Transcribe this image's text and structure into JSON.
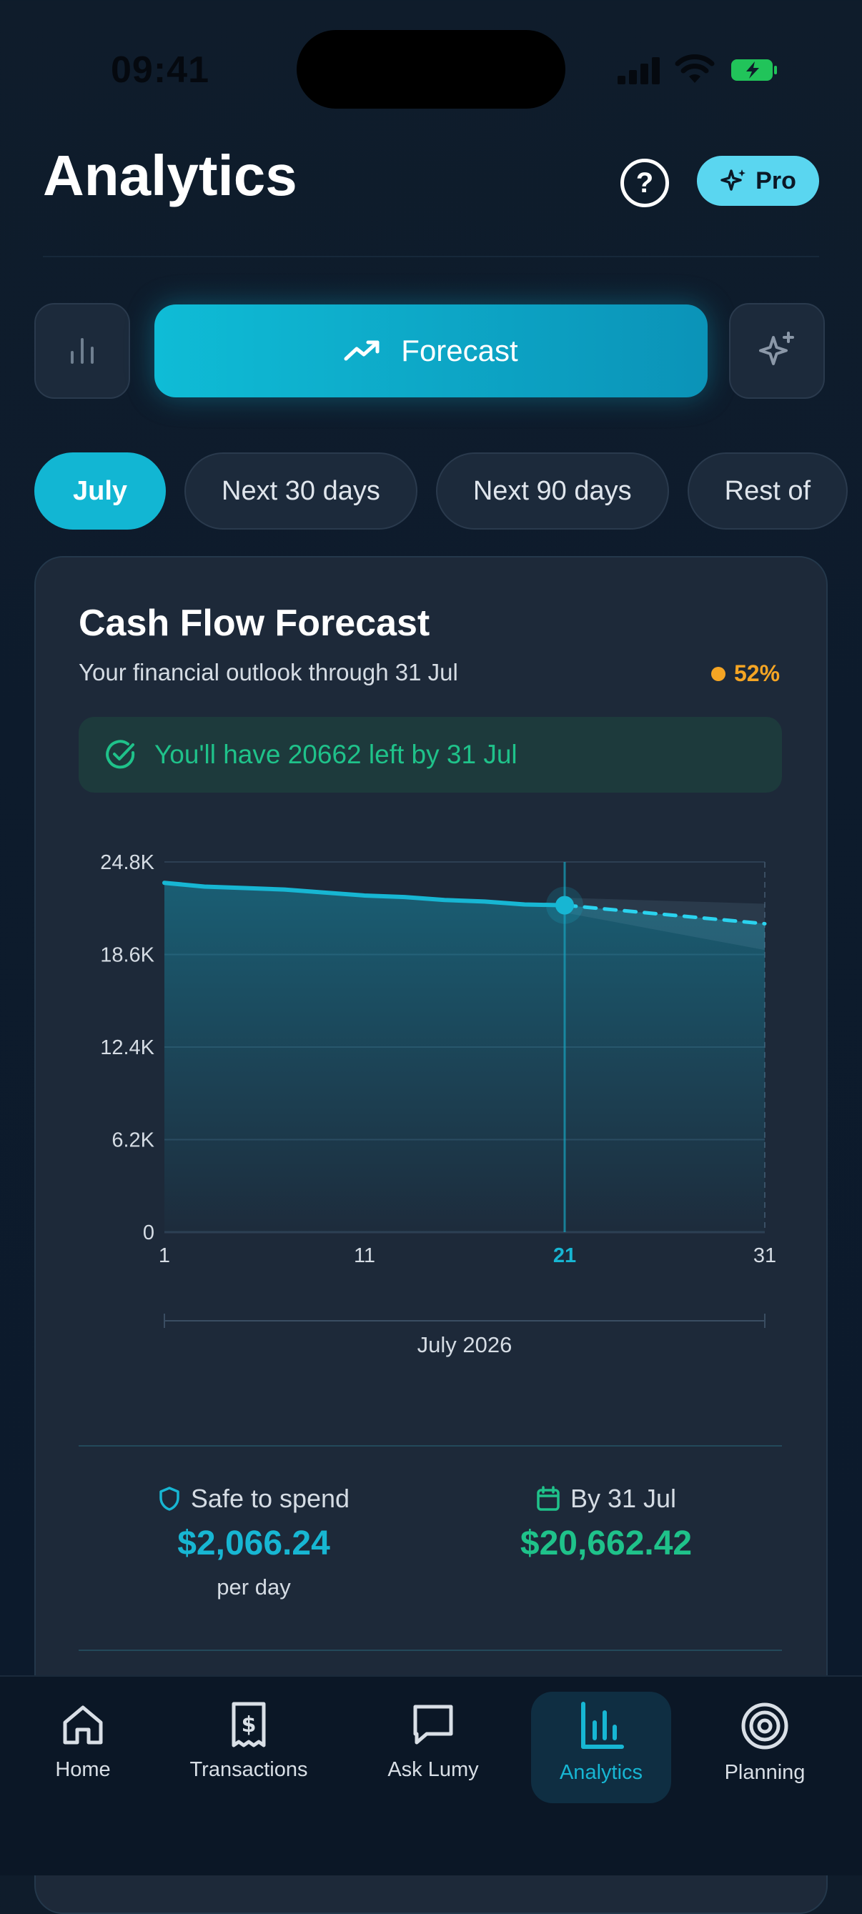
{
  "status_bar": {
    "time": "09:41"
  },
  "header": {
    "title": "Analytics",
    "help_glyph": "?",
    "pro_label": "Pro"
  },
  "view_switch": {
    "left_icon": "bar-chart-icon",
    "active_label": "Forecast",
    "right_icon": "sparkles-icon"
  },
  "periods": [
    "July",
    "Next 30 days",
    "Next 90 days",
    "Rest of"
  ],
  "card": {
    "title": "Cash Flow Forecast",
    "subtitle": "Your financial outlook through 31 Jul",
    "confidence": "52%",
    "banner": "You'll have 20662 left by 31 Jul"
  },
  "chart_data": {
    "type": "line",
    "x_ticks": [
      "1",
      "11",
      "21",
      "31"
    ],
    "highlight_tick": "21",
    "y_ticks": [
      "24.8K",
      "18.6K",
      "12.4K",
      "6.2K",
      "0"
    ],
    "ylim": [
      0,
      24800
    ],
    "xlim": [
      1,
      31
    ],
    "period_label": "July 2026",
    "actual": {
      "x": [
        1,
        3,
        5,
        7,
        9,
        11,
        13,
        15,
        17,
        19,
        21
      ],
      "y": [
        23400,
        23150,
        23050,
        22950,
        22750,
        22550,
        22450,
        22250,
        22150,
        21950,
        21900
      ]
    },
    "forecast": {
      "x": [
        21,
        31
      ],
      "y": [
        21900,
        20662
      ]
    },
    "forecast_band": {
      "upper": [
        22400,
        22000
      ],
      "lower": [
        21400,
        18900
      ]
    },
    "today_x": 21,
    "colors": {
      "line": "#17b6d3",
      "forecast": "#2ad3ef",
      "grid": "#2d3f53"
    }
  },
  "stats": {
    "safe_label": "Safe to spend",
    "safe_value": "$2,066.24",
    "safe_note": "per day",
    "by_label": "By 31 Jul",
    "by_value": "$20,662.42"
  },
  "nav": {
    "items": [
      {
        "label": "Home",
        "icon": "home-icon"
      },
      {
        "label": "Transactions",
        "icon": "receipt-icon"
      },
      {
        "label": "Ask Lumy",
        "icon": "chat-icon"
      },
      {
        "label": "Analytics",
        "icon": "analytics-icon"
      },
      {
        "label": "Planning",
        "icon": "target-icon"
      }
    ],
    "active": "Analytics"
  },
  "colors": {
    "accent": "#12b6d3",
    "positive": "#1fc28a",
    "warning": "#f5a524"
  }
}
